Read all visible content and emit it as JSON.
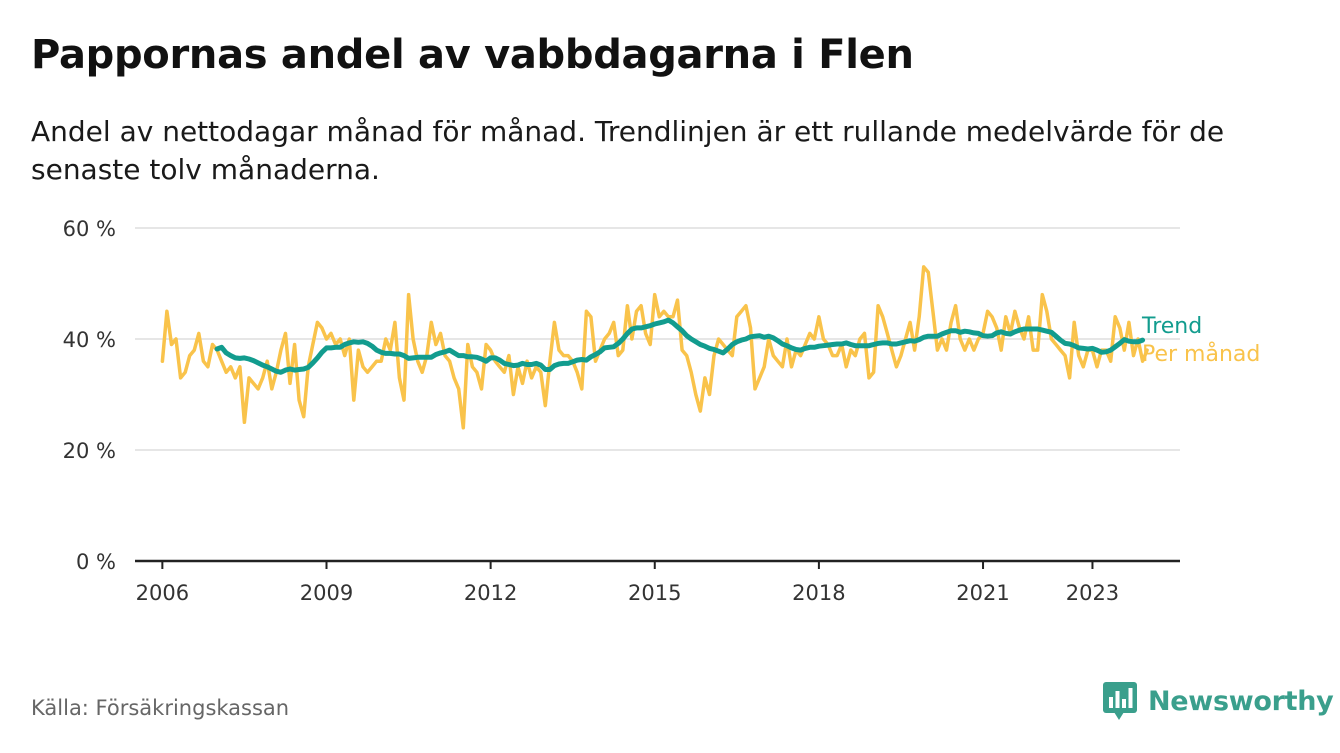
{
  "title": "Pappornas andel av vabbdagarna i Flen",
  "subtitle": "Andel av nettodagar månad för månad. Trendlinjen är ett rullande medelvärde för de senaste tolv månaderna.",
  "source": "Källa: Försäkringskassan",
  "brand": {
    "name": "Newsworthy",
    "icon": "newsworthy-logo-icon"
  },
  "colors": {
    "trend": "#129c8e",
    "monthly": "#f9c34b",
    "grid": "#dddddd",
    "axis": "#222222",
    "brand": "#3a9f8c"
  },
  "chart_data": {
    "type": "line",
    "title": "Pappornas andel av vabbdagarna i Flen",
    "xlabel": "",
    "ylabel": "",
    "xlim": [
      2005.5,
      2024.6
    ],
    "ylim": [
      0,
      60
    ],
    "x_ticks": [
      2006,
      2009,
      2012,
      2015,
      2018,
      2021,
      2023
    ],
    "y_ticks": [
      0,
      20,
      40,
      60
    ],
    "y_tick_labels": [
      "0 %",
      "20 %",
      "40 %",
      "60 %"
    ],
    "grid": true,
    "legend_placement": "right end of lines",
    "series": [
      {
        "name": "Per månad",
        "color": "#f9c34b",
        "x_start": 2006.0,
        "x_step": 0.08333,
        "values": [
          36,
          45,
          39,
          40,
          33,
          34,
          37,
          38,
          41,
          36,
          35,
          39,
          38,
          36,
          34,
          35,
          33,
          35,
          25,
          33,
          32,
          31,
          33,
          36,
          31,
          34,
          38,
          41,
          32,
          39,
          29,
          26,
          35,
          39,
          43,
          42,
          40,
          41,
          39,
          40,
          37,
          40,
          29,
          38,
          35,
          34,
          35,
          36,
          36,
          40,
          38,
          43,
          33,
          29,
          48,
          40,
          36,
          34,
          37,
          43,
          39,
          41,
          37,
          36,
          33,
          31,
          24,
          39,
          35,
          34,
          31,
          39,
          38,
          36,
          35,
          34,
          37,
          30,
          35,
          32,
          36,
          33,
          35,
          34,
          28,
          36,
          43,
          38,
          37,
          37,
          36,
          34,
          31,
          45,
          44,
          36,
          38,
          40,
          41,
          43,
          37,
          38,
          46,
          40,
          45,
          46,
          41,
          39,
          48,
          44,
          45,
          44,
          44,
          47,
          38,
          37,
          34,
          30,
          27,
          33,
          30,
          37,
          40,
          39,
          38,
          37,
          44,
          45,
          46,
          42,
          31,
          33,
          35,
          40,
          37,
          36,
          35,
          40,
          35,
          38,
          37,
          39,
          41,
          40,
          44,
          40,
          39,
          37,
          37,
          39,
          35,
          38,
          37,
          40,
          41,
          33,
          34,
          46,
          44,
          41,
          38,
          35,
          37,
          40,
          43,
          38,
          44,
          53,
          52,
          45,
          38,
          40,
          38,
          43,
          46,
          40,
          38,
          40,
          38,
          40,
          41,
          45,
          44,
          42,
          38,
          44,
          41,
          45,
          42,
          40,
          44,
          38,
          38,
          48,
          45,
          40,
          39,
          38,
          37,
          33,
          43,
          37,
          35,
          38,
          38,
          35,
          38,
          38,
          36,
          44,
          42,
          38,
          43,
          37,
          40,
          36,
          38
        ]
      },
      {
        "name": "Trend",
        "color": "#129c8e",
        "x_start": 2007.0,
        "x_step": 0.08333,
        "values": [
          38.2,
          38.5,
          37.5,
          37.0,
          36.6,
          36.5,
          36.6,
          36.4,
          36.1,
          35.7,
          35.3,
          35.0,
          34.6,
          34.2,
          34.0,
          34.4,
          34.6,
          34.4,
          34.5,
          34.6,
          34.9,
          35.7,
          36.6,
          37.6,
          38.4,
          38.4,
          38.5,
          38.5,
          39.0,
          39.3,
          39.5,
          39.4,
          39.5,
          39.2,
          38.7,
          38.0,
          37.6,
          37.4,
          37.4,
          37.3,
          37.3,
          37.0,
          36.5,
          36.6,
          36.7,
          36.7,
          36.7,
          36.7,
          37.2,
          37.5,
          37.7,
          38.0,
          37.5,
          37.0,
          37.0,
          36.8,
          36.8,
          36.7,
          36.4,
          36.0,
          36.6,
          36.6,
          36.2,
          35.6,
          35.4,
          35.2,
          35.3,
          35.6,
          35.4,
          35.4,
          35.6,
          35.3,
          34.5,
          34.5,
          35.2,
          35.5,
          35.6,
          35.6,
          35.9,
          36.2,
          36.3,
          36.2,
          36.8,
          37.2,
          37.7,
          38.4,
          38.5,
          38.6,
          39.2,
          40.0,
          41.0,
          41.8,
          42.0,
          42.0,
          42.2,
          42.4,
          42.7,
          42.9,
          43.1,
          43.4,
          42.9,
          42.2,
          41.5,
          40.6,
          40.0,
          39.5,
          39.0,
          38.7,
          38.3,
          38.1,
          37.8,
          37.5,
          38.2,
          39.0,
          39.5,
          39.8,
          40.0,
          40.4,
          40.5,
          40.6,
          40.3,
          40.5,
          40.2,
          39.7,
          39.1,
          38.8,
          38.4,
          38.1,
          38.0,
          38.3,
          38.5,
          38.5,
          38.7,
          38.8,
          38.9,
          39.0,
          39.1,
          39.1,
          39.3,
          39.0,
          38.8,
          38.8,
          38.8,
          38.8,
          39.0,
          39.2,
          39.3,
          39.3,
          39.1,
          39.1,
          39.3,
          39.5,
          39.7,
          39.6,
          39.9,
          40.3,
          40.5,
          40.5,
          40.5,
          40.9,
          41.2,
          41.5,
          41.5,
          41.2,
          41.4,
          41.3,
          41.1,
          41.0,
          40.6,
          40.5,
          40.6,
          41.1,
          41.3,
          41.0,
          40.9,
          41.3,
          41.6,
          41.8,
          41.8,
          41.8,
          41.8,
          41.6,
          41.4,
          41.2,
          40.5,
          39.8,
          39.2,
          39.1,
          38.8,
          38.4,
          38.3,
          38.2,
          38.3,
          38.0,
          37.6,
          37.7,
          38.0,
          38.6,
          39.2,
          39.9,
          39.6,
          39.5,
          39.5,
          39.8
        ]
      }
    ]
  }
}
